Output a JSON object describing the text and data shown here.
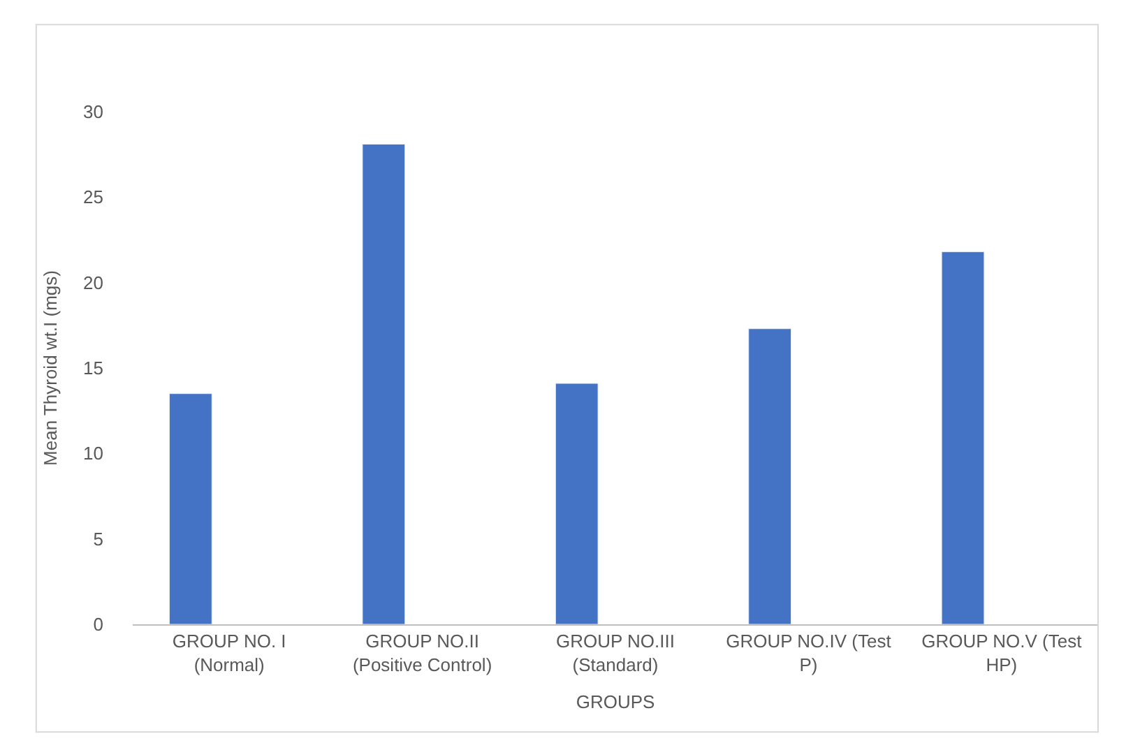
{
  "chart_data": {
    "type": "bar",
    "xlabel": "GROUPS",
    "ylabel": "Mean Thyroid wt.I (mgs)",
    "categories": [
      "GROUP NO. I\n(Normal)",
      "GROUP NO.II\n(Positive Control)",
      "GROUP NO.III\n(Standard)",
      "GROUP NO.IV (Test\nP)",
      "GROUP NO.V (Test\nHP)"
    ],
    "values": [
      13.5,
      28.1,
      14.1,
      17.3,
      21.8
    ],
    "color": "#4472c4",
    "ylim": [
      0,
      30
    ],
    "yticks": [
      0,
      5,
      10,
      15,
      20,
      25,
      30
    ],
    "grid": false,
    "legend": false
  }
}
